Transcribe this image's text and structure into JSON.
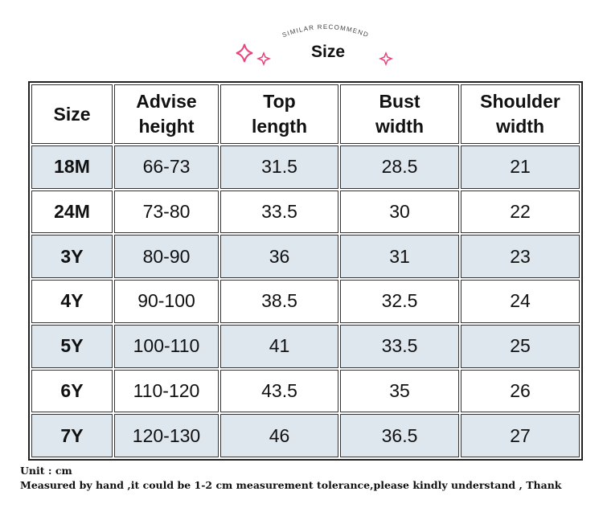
{
  "header": {
    "subtitle": "SIMILAR RECOMMEND",
    "title": "Size"
  },
  "table": {
    "columns": [
      "Size",
      "Advise height",
      "Top length",
      "Bust width",
      "Shoulder width"
    ],
    "rows": [
      [
        "18M",
        "66-73",
        "31.5",
        "28.5",
        "21"
      ],
      [
        "24M",
        "73-80",
        "33.5",
        "30",
        "22"
      ],
      [
        "3Y",
        "80-90",
        "36",
        "31",
        "23"
      ],
      [
        "4Y",
        "90-100",
        "38.5",
        "32.5",
        "24"
      ],
      [
        "5Y",
        "100-110",
        "41",
        "33.5",
        "25"
      ],
      [
        "6Y",
        "110-120",
        "43.5",
        "35",
        "26"
      ],
      [
        "7Y",
        "120-130",
        "46",
        "36.5",
        "27"
      ]
    ]
  },
  "footer": {
    "unit": "Unit : cm",
    "note": "Measured by hand ,it could be 1-2 cm measurement tolerance,please kindly understand , Thank"
  }
}
